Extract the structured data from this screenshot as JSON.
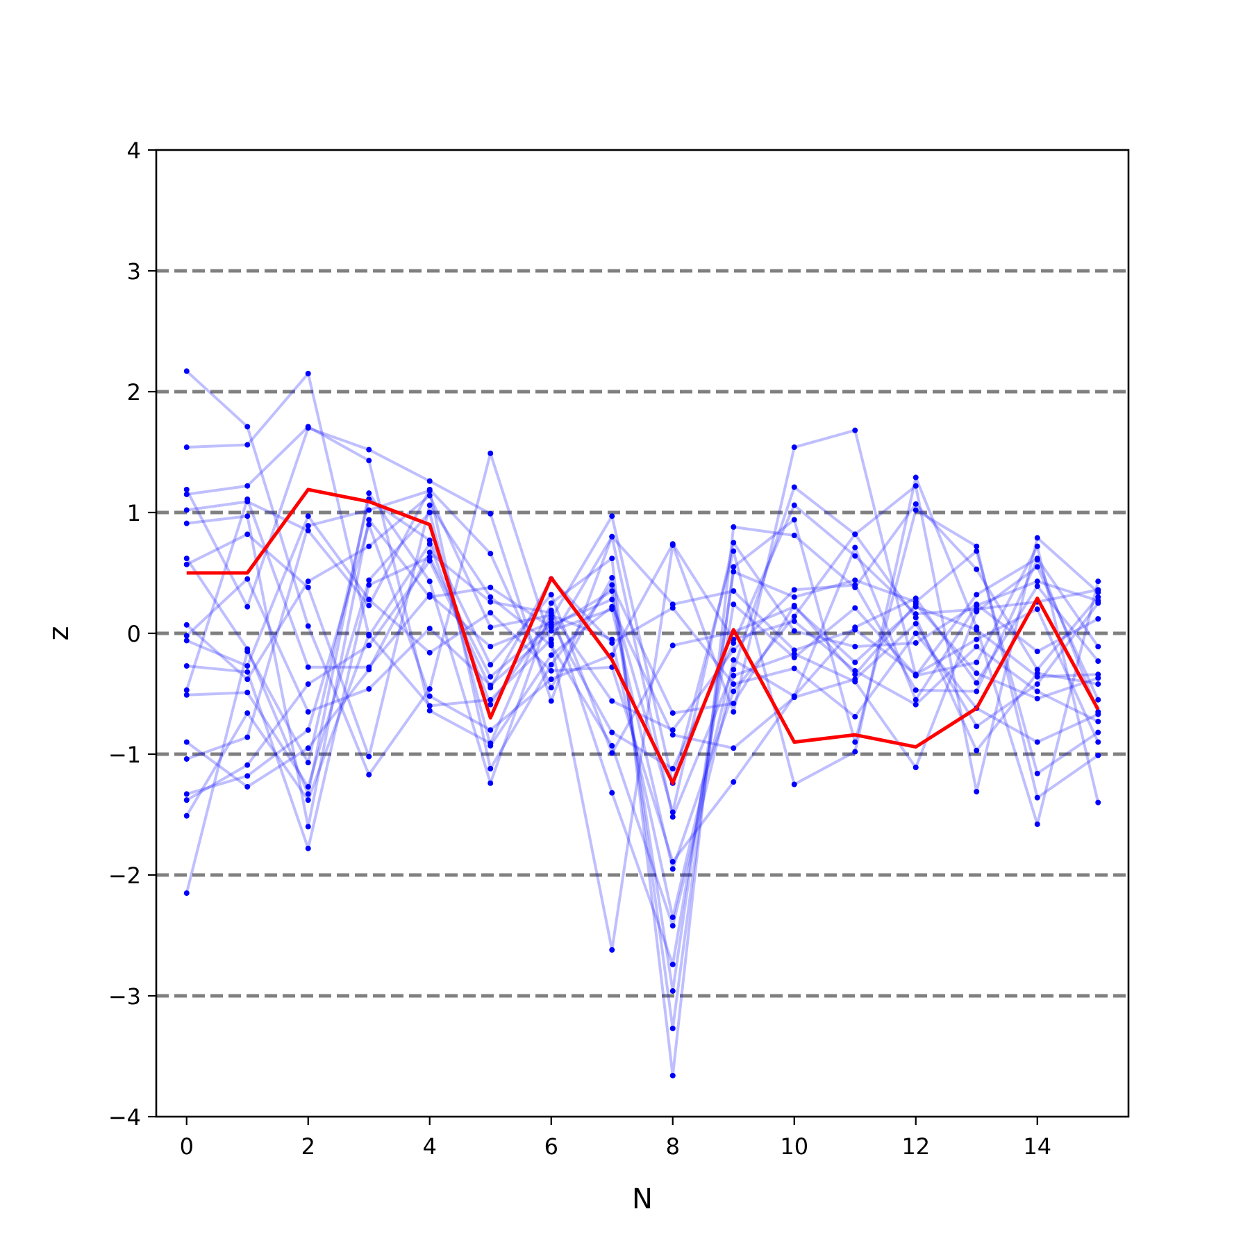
{
  "chart_data": {
    "type": "line",
    "title": "",
    "xlabel": "N",
    "ylabel": "z",
    "xlim": [
      -0.5,
      15.5
    ],
    "ylim": [
      -4,
      4
    ],
    "xticks": [
      0,
      2,
      4,
      6,
      8,
      10,
      12,
      14
    ],
    "yticks": [
      -4,
      -3,
      -2,
      -1,
      0,
      1,
      2,
      3,
      4
    ],
    "ytick_labels": [
      "−4",
      "−3",
      "−2",
      "−1",
      "0",
      "1",
      "2",
      "3",
      "4"
    ],
    "reference_lines": [
      -3,
      -2,
      -1,
      0,
      1,
      2,
      3
    ],
    "reference_line_color": "#808080",
    "background_series_color": "#0000ff",
    "highlight_series_color": "#ff0000",
    "x": [
      0,
      1,
      2,
      3,
      4,
      5,
      6,
      7,
      8,
      9,
      10,
      11,
      12,
      13,
      14,
      15
    ],
    "highlight": [
      0.5,
      0.5,
      1.19,
      1.09,
      0.9,
      -0.7,
      0.46,
      -0.22,
      -1.24,
      0.03,
      -0.9,
      -0.84,
      -0.94,
      -0.62,
      0.29,
      -0.63
    ],
    "series": [
      {
        "values": [
          2.17,
          1.71,
          0.06,
          -1.17,
          -0.46,
          1.49,
          -0.08,
          -2.62,
          0.73,
          -0.65,
          1.54,
          1.68,
          -0.35,
          -0.24,
          0.72,
          -1.4
        ]
      },
      {
        "values": [
          1.54,
          1.56,
          2.15,
          -0.02,
          0.74,
          -0.59,
          0.12,
          0.97,
          -1.24,
          0.68,
          -1.25,
          -0.98,
          1.29,
          0.05,
          -1.58,
          0.43
        ]
      },
      {
        "values": [
          1.19,
          0.22,
          1.7,
          1.52,
          1.26,
          0.99,
          -0.56,
          0.8,
          -1.52,
          -0.3,
          1.21,
          0.82,
          1.22,
          -1.31,
          0.79,
          0.34
        ]
      },
      {
        "values": [
          1.15,
          1.22,
          1.71,
          1.43,
          -0.64,
          -0.91,
          0.25,
          0.62,
          -3.66,
          0.88,
          0.81,
          0.38,
          1.07,
          0.53,
          -0.3,
          0.3
        ]
      },
      {
        "values": [
          1.02,
          1.09,
          0.85,
          0.23,
          1.19,
          0.66,
          -0.45,
          0.46,
          -3.27,
          0.55,
          0.94,
          -0.9,
          1.02,
          0.72,
          -1.36,
          -1.01
        ]
      },
      {
        "values": [
          0.91,
          0.97,
          -1.6,
          0.94,
          0.3,
          0.38,
          0.05,
          0.35,
          -2.96,
          0.51,
          0.3,
          0.44,
          0.26,
          0.68,
          -1.16,
          -0.82
        ]
      },
      {
        "values": [
          0.62,
          -0.13,
          -1.33,
          1.16,
          0.43,
          -1.24,
          0.19,
          -1.32,
          -2.74,
          0.24,
          -0.2,
          0.21,
          -0.35,
          0.32,
          0.62,
          -0.11
        ]
      },
      {
        "values": [
          0.57,
          0.82,
          0.38,
          -1.02,
          1.06,
          0.3,
          -0.1,
          -0.93,
          -2.42,
          -0.35,
          -0.17,
          -0.4,
          -1.11,
          0.18,
          0.55,
          -0.55
        ]
      },
      {
        "values": [
          0.07,
          -0.38,
          0.43,
          0.72,
          1.14,
          0.05,
          0.15,
          -0.05,
          -2.35,
          -0.22,
          -0.52,
          0.71,
          -0.55,
          0.23,
          0.43,
          0.27
        ]
      },
      {
        "values": [
          -0.02,
          0.45,
          -0.65,
          -0.46,
          0.04,
          -0.43,
          0.02,
          0.2,
          -1.95,
          -0.48,
          0.14,
          0.82,
          0.13,
          -0.97,
          -0.33,
          -0.42
        ]
      },
      {
        "values": [
          -0.06,
          -0.27,
          0.97,
          0.28,
          -0.16,
          0.17,
          -0.31,
          -0.28,
          -1.89,
          -1.23,
          -0.52,
          0.05,
          0.29,
          -0.41,
          0.39,
          -0.23
        ]
      },
      {
        "values": [
          -0.27,
          -0.32,
          -1.78,
          0.4,
          0.63,
          -0.36,
          0.07,
          0.28,
          -1.48,
          0.75,
          0.02,
          -0.11,
          -0.08,
          0.24,
          -0.15,
          0.12
        ]
      },
      {
        "values": [
          -0.47,
          1.11,
          -0.28,
          -0.28,
          0.32,
          -0.11,
          0.09,
          -0.82,
          -1.12,
          -0.08,
          1.06,
          0.64,
          0.16,
          0.2,
          0.26,
          0.36
        ]
      },
      {
        "values": [
          -0.51,
          -0.49,
          -1.27,
          0.44,
          1.0,
          -0.93,
          -0.18,
          0.22,
          -0.84,
          -0.95,
          -0.53,
          -0.38,
          0.08,
          -0.77,
          -0.42,
          0.25
        ]
      },
      {
        "values": [
          -0.9,
          -1.27,
          -0.95,
          -0.3,
          0.67,
          0.26,
          0.17,
          -0.56,
          -0.8,
          -0.14,
          0.36,
          0.4,
          -0.47,
          -0.48,
          0.61,
          -0.65
        ]
      },
      {
        "values": [
          -1.04,
          -0.86,
          0.89,
          1.02,
          1.18,
          -1.12,
          -0.26,
          0.4,
          -0.66,
          -0.58,
          0.23,
          -0.34,
          0.24,
          -0.33,
          -0.54,
          -0.37
        ]
      },
      {
        "values": [
          -1.33,
          -1.18,
          -0.8,
          0.9,
          -0.52,
          -0.8,
          -0.38,
          -0.18,
          0.74,
          -0.05,
          0.1,
          -0.31,
          -0.59,
          -0.11,
          -0.48,
          -0.73
        ]
      },
      {
        "values": [
          -1.38,
          -1.09,
          -0.42,
          -0.1,
          0.6,
          -0.45,
          0.45,
          -0.08,
          0.21,
          -0.42,
          -0.29,
          -0.69,
          0.0,
          -0.62,
          -0.9,
          -0.67
        ]
      },
      {
        "values": [
          -1.51,
          -0.66,
          -1.38,
          -0.01,
          -0.6,
          -0.55,
          -0.05,
          0.8,
          0.24,
          0.35,
          -0.14,
          0.03,
          -0.34,
          -0.05,
          0.2,
          -0.9
        ]
      },
      {
        "values": [
          -2.15,
          -0.15,
          -1.07,
          1.11,
          0.77,
          -0.26,
          0.32,
          -0.99,
          -0.1,
          0.01,
          0.22,
          -0.24,
          0.22,
          0.03,
          -0.36,
          -0.34
        ]
      }
    ]
  }
}
